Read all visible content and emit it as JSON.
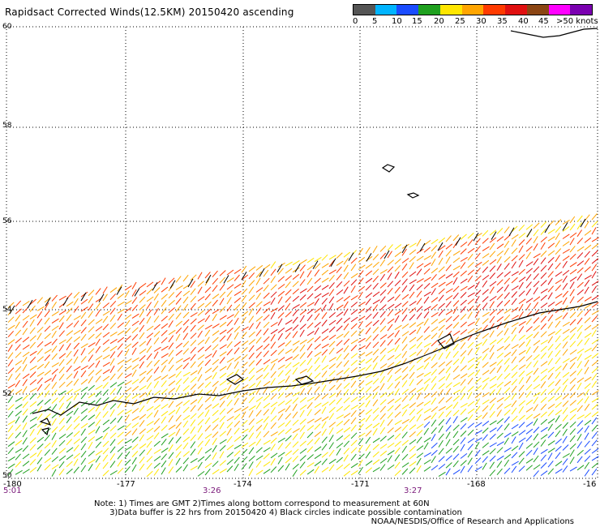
{
  "title": "Rapidsact Corrected Winds(12.5KM) 20150420 ascending",
  "legend": {
    "labels": [
      "0",
      "5",
      "10",
      "15",
      "20",
      "25",
      "30",
      "35",
      "40",
      "45",
      ">50 knots"
    ],
    "colors": [
      "#555555",
      "#00b4ff",
      "#1a4cff",
      "#1fa01f",
      "#ffe600",
      "#ffa500",
      "#ff3b00",
      "#e01010",
      "#8b4513",
      "#ff00ff",
      "#7a00b0"
    ]
  },
  "lat_labels": [
    "60",
    "58",
    "56",
    "54",
    "52",
    "50"
  ],
  "lon_labels": [
    "-180",
    "-177",
    "-174",
    "-171",
    "-168",
    "-16"
  ],
  "time_labels": [
    "5:01",
    "3:26",
    "3:27"
  ],
  "notes": "Note: 1) Times are GMT 2)Times along bottom correspond to measurement at 60N\n      3)Data buffer is 22 hrs from 20150420 4) Black circles indicate possible contamination",
  "credit": "NOAA/NESDIS/Office of Research and Applications"
}
